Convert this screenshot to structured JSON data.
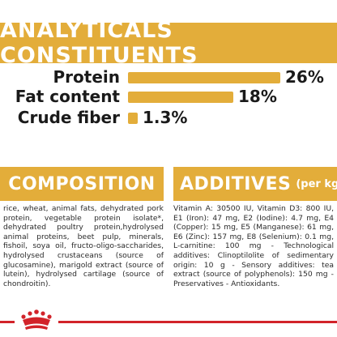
{
  "analytical": {
    "title": "ANALYTICALS CONSTITUENTS",
    "rows": [
      {
        "label": "Protein",
        "value": "26%",
        "fraction": 1.0
      },
      {
        "label": "Fat content",
        "value": "18%",
        "fraction": 0.69
      },
      {
        "label": "Crude fiber",
        "value": "1.3%",
        "fraction": 0.05
      }
    ]
  },
  "composition": {
    "title": "COMPOSITION",
    "text": "rice, wheat, animal fats, dehydrated pork protein, vegetable protein isolate*, dehydrated poultry protein,hydrolysed animal proteins, beet pulp, minerals, fishoil, soya oil, fructo-oligo-saccharides, hydrolysed crustaceans (source of glucosamine), marigold extract (source of lutein), hydrolysed cartilage (source of chondroitin)."
  },
  "additives": {
    "title": "ADDITIVES",
    "subtitle": "(per kg)",
    "text": "Vitamin A: 30500 IU, Vitamin D3: 800 IU, E1 (Iron): 47 mg, E2 (Iodine): 4.7 mg, E4 (Copper): 15 mg, E5 (Manganese): 61 mg, E6 (Zinc): 157 mg, E8 (Selenium): 0.1 mg, L-carnitine: 100 mg - Technological additives: Clinoptilolite of sedimentary origin: 10 g - Sensory additives: tea extract (source of polyphenols): 150 mg - Preservatives - Antioxidants."
  },
  "colors": {
    "accent": "#e3ad3a",
    "brand_red": "#d2232a"
  },
  "icons": {
    "brand": "royal-canin-crown-icon"
  }
}
